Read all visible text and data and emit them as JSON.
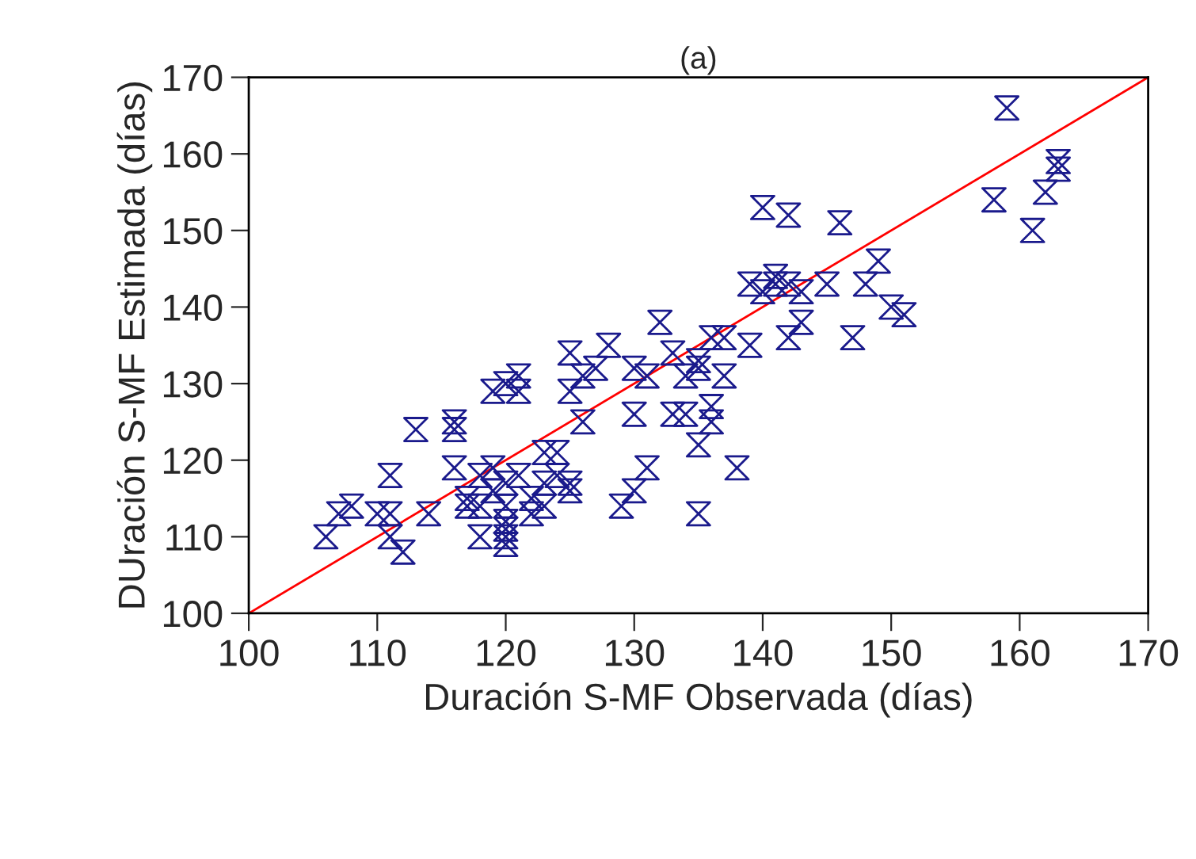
{
  "chart_data": {
    "type": "scatter",
    "title": "(a)",
    "xlabel": "Duración S-MF Observada (días)",
    "ylabel": "DUración S-MF Estimada (días)",
    "xlim": [
      100,
      170
    ],
    "ylim": [
      100,
      170
    ],
    "xticks": [
      100,
      110,
      120,
      130,
      140,
      150,
      160,
      170
    ],
    "yticks": [
      100,
      110,
      120,
      130,
      140,
      150,
      160,
      170
    ],
    "grid": false,
    "legend": false,
    "marker": "diamond",
    "series": [
      {
        "type": "scatter",
        "color": "#1a1a8c",
        "x": [
          106,
          107,
          108,
          110,
          111,
          111,
          111,
          112,
          113,
          114,
          116,
          116,
          116,
          117,
          117,
          118,
          118,
          118,
          119,
          119,
          119,
          120,
          120,
          120,
          120,
          120,
          120,
          120,
          121,
          121,
          121,
          122,
          122,
          123,
          123,
          123,
          124,
          124,
          125,
          125,
          125,
          125,
          126,
          126,
          127,
          128,
          129,
          130,
          130,
          130,
          131,
          131,
          132,
          133,
          133,
          134,
          134,
          135,
          135,
          135,
          135,
          136,
          136,
          136,
          137,
          137,
          138,
          139,
          139,
          140,
          140,
          141,
          141,
          142,
          142,
          142,
          143,
          143,
          145,
          146,
          147,
          148,
          149,
          150,
          151,
          158,
          159,
          161,
          162,
          163,
          163
        ],
        "values": [
          110,
          113,
          114,
          113,
          113,
          110,
          118,
          108,
          124,
          113,
          125,
          124,
          119,
          115,
          114,
          110,
          114,
          118,
          116,
          119,
          129,
          109,
          110,
          111,
          112,
          114,
          117,
          130,
          129,
          131,
          118,
          113,
          115,
          114,
          117,
          121,
          118,
          121,
          116,
          117,
          129,
          134,
          125,
          131,
          132,
          135,
          114,
          116,
          126,
          132,
          119,
          131,
          138,
          126,
          134,
          126,
          131,
          113,
          122,
          132,
          133,
          125,
          127,
          136,
          131,
          136,
          119,
          135,
          143,
          153,
          142,
          143,
          144,
          136,
          143,
          152,
          138,
          142,
          143,
          151,
          136,
          143,
          146,
          140,
          139,
          154,
          166,
          150,
          155,
          158,
          159
        ]
      },
      {
        "type": "line",
        "color": "#ff0000",
        "x": [
          100,
          170
        ],
        "values": [
          100,
          170
        ],
        "marker": "none"
      }
    ]
  }
}
